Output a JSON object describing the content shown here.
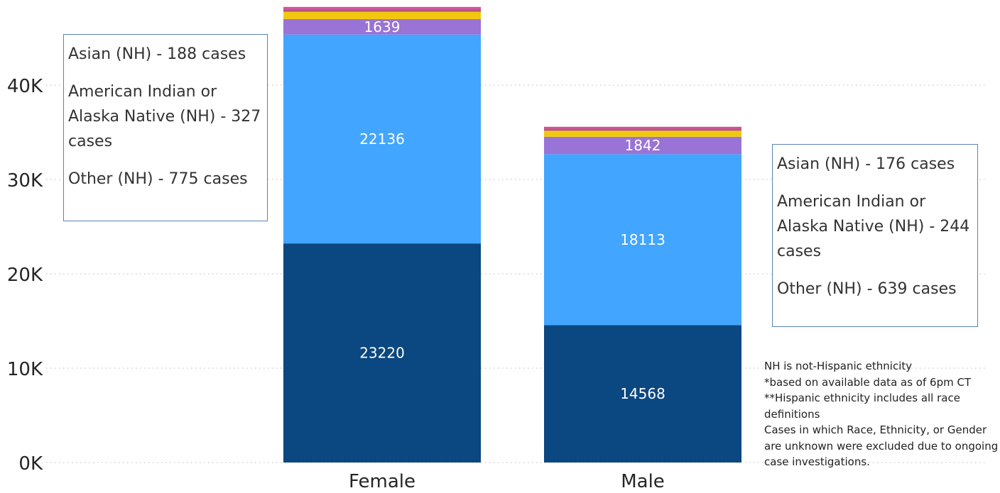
{
  "chart_data": {
    "type": "bar",
    "stacked": true,
    "categories": [
      "Female",
      "Male"
    ],
    "series": [
      {
        "values": [
          23220,
          14568
        ],
        "color": "#0b4780",
        "labels": [
          "23220",
          "14568"
        ]
      },
      {
        "values": [
          22136,
          18113
        ],
        "color": "#42a5ff",
        "labels": [
          "22136",
          "18113"
        ]
      },
      {
        "values": [
          1639,
          1842
        ],
        "color": "#9a73d6",
        "labels": [
          "1639",
          "1842"
        ]
      },
      {
        "values": [
          775,
          639
        ],
        "color": "#f2c80f"
      },
      {
        "values": [
          327,
          244
        ],
        "color": "#b05a7a"
      },
      {
        "values": [
          188,
          176
        ],
        "color": "#e044a7"
      }
    ],
    "yticks": [
      "0K",
      "10K",
      "20K",
      "30K",
      "40K"
    ],
    "ylim": [
      0,
      50000
    ],
    "grid": true
  },
  "annotations": {
    "female": [
      "Asian (NH) - 188 cases",
      "American Indian or Alaska Native (NH) - 327 cases",
      "Other (NH) - 775 cases"
    ],
    "male": [
      "Asian (NH) - 176 cases",
      "American Indian or Alaska Native (NH) - 244 cases",
      "Other (NH) - 639 cases"
    ]
  },
  "footnotes": [
    "NH is not-Hispanic ethnicity",
    "*based on available data as of 6pm CT",
    "**Hispanic ethnicity includes all race definitions",
    "Cases in which Race, Ethnicity, or Gender are unknown were excluded due to ongoing case investigations."
  ]
}
